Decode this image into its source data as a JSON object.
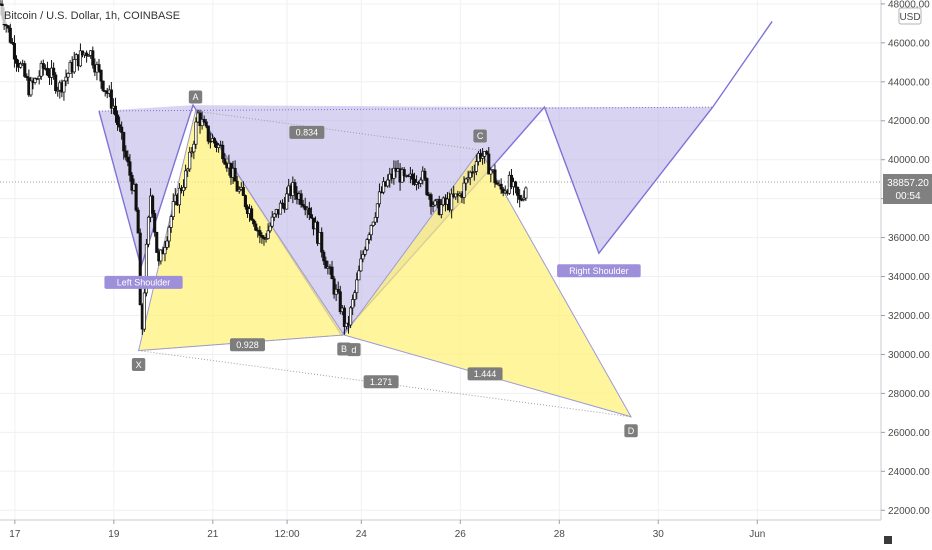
{
  "header": {
    "title": "Bitcoin / U.S. Dollar, 1h, COINBASE"
  },
  "price_axis": {
    "currency_label": "USD",
    "last_price_label": "38857.20",
    "countdown_label": "00:54"
  },
  "colors": {
    "up_candle": "#000000",
    "down_candle": "#000000",
    "harmonic_fill": "#fff176",
    "harmonic_stroke": "#9c9ad8",
    "hs_fill": "#b8aee6",
    "hs_stroke": "#7e73d6",
    "label_bg_purple": "#9d8fd9",
    "label_bg_gray": "#7d7d7d",
    "grid": "#eef0f3",
    "last_price_tag": "#808080"
  },
  "chart_data": {
    "type": "candlestick",
    "title": "Bitcoin / U.S. Dollar, 1h, COINBASE",
    "symbol": "BTCUSD",
    "exchange": "COINBASE",
    "interval": "1h",
    "ylim": [
      21500,
      48200
    ],
    "y_ticks": [
      22000,
      24000,
      26000,
      28000,
      30000,
      32000,
      34000,
      36000,
      38000,
      40000,
      42000,
      44000,
      46000,
      48000
    ],
    "y_tick_labels": [
      "22000.00",
      "24000.00",
      "26000.00",
      "28000.00",
      "30000.00",
      "32000.00",
      "34000.00",
      "36000.00",
      "38000.00",
      "40000.00",
      "42000.00",
      "44000.00",
      "46000.00",
      "48000.00"
    ],
    "x_range_days": [
      16.7,
      34.5
    ],
    "x_ticks": [
      {
        "day": 17,
        "label": "17"
      },
      {
        "day": 19,
        "label": "19"
      },
      {
        "day": 21,
        "label": "21"
      },
      {
        "day": 22.5,
        "label": "12:00"
      },
      {
        "day": 24,
        "label": "24"
      },
      {
        "day": 26,
        "label": "26"
      },
      {
        "day": 28,
        "label": "28"
      },
      {
        "day": 30,
        "label": "30"
      },
      {
        "day": 32,
        "label": "Jun"
      }
    ],
    "grid": true,
    "last_price": 38857.2,
    "price_path": [
      [
        16.7,
        48000
      ],
      [
        17.0,
        45500
      ],
      [
        17.3,
        43600
      ],
      [
        17.6,
        44800
      ],
      [
        17.9,
        43700
      ],
      [
        18.2,
        45000
      ],
      [
        18.5,
        45700
      ],
      [
        18.7,
        44400
      ],
      [
        19.0,
        42700
      ],
      [
        19.2,
        40500
      ],
      [
        19.4,
        38500
      ],
      [
        19.5,
        36000
      ],
      [
        19.55,
        30200
      ],
      [
        19.65,
        35000
      ],
      [
        19.75,
        38500
      ],
      [
        19.9,
        34500
      ],
      [
        20.2,
        37500
      ],
      [
        20.5,
        39500
      ],
      [
        20.7,
        42300
      ],
      [
        20.9,
        41200
      ],
      [
        21.2,
        40500
      ],
      [
        21.5,
        38500
      ],
      [
        21.8,
        37200
      ],
      [
        22.0,
        35800
      ],
      [
        22.3,
        37300
      ],
      [
        22.6,
        38500
      ],
      [
        22.9,
        37800
      ],
      [
        23.2,
        35500
      ],
      [
        23.4,
        33800
      ],
      [
        23.6,
        32300
      ],
      [
        23.7,
        31200
      ],
      [
        23.9,
        33500
      ],
      [
        24.1,
        36000
      ],
      [
        24.4,
        38300
      ],
      [
        24.7,
        39500
      ],
      [
        24.9,
        38800
      ],
      [
        25.2,
        39300
      ],
      [
        25.5,
        37500
      ],
      [
        25.8,
        37800
      ],
      [
        26.0,
        38200
      ],
      [
        26.2,
        39300
      ],
      [
        26.4,
        40400
      ],
      [
        26.6,
        39600
      ],
      [
        26.8,
        38400
      ],
      [
        27.0,
        38800
      ],
      [
        27.2,
        37800
      ],
      [
        27.35,
        38857
      ]
    ],
    "harmonic_pattern": {
      "points": [
        {
          "name": "X",
          "day": 19.5,
          "price": 30200
        },
        {
          "name": "A",
          "day": 20.65,
          "price": 42500
        },
        {
          "name": "B",
          "day": 23.65,
          "price": 31000
        },
        {
          "name": "C",
          "day": 26.4,
          "price": 40500
        },
        {
          "name": "D",
          "day": 29.45,
          "price": 26800
        }
      ],
      "ratios": [
        {
          "label": "0.834",
          "day": 22.9,
          "price": 41400
        },
        {
          "label": "0.928",
          "day": 21.7,
          "price": 30500
        },
        {
          "label": "1.271",
          "day": 24.4,
          "price": 28600
        },
        {
          "label": "1.444",
          "day": 26.5,
          "price": 29000
        }
      ]
    },
    "head_and_shoulders": {
      "points": [
        [
          18.7,
          42500
        ],
        [
          19.55,
          34500
        ],
        [
          20.6,
          42800
        ],
        [
          23.6,
          31000
        ],
        [
          26.7,
          39800
        ],
        [
          27.7,
          42700
        ],
        [
          28.8,
          35200
        ],
        [
          31.1,
          42700
        ],
        [
          32.3,
          47100
        ]
      ],
      "neckline": [
        [
          18.7,
          42500
        ],
        [
          31.1,
          42700
        ]
      ],
      "labels": [
        {
          "label": "Left Shoulder",
          "day": 19.6,
          "price": 33700
        },
        {
          "label": "Right Shoulder",
          "day": 28.8,
          "price": 34300
        }
      ]
    },
    "extra_markers": [
      {
        "label": "d",
        "day": 23.85,
        "price": 30250
      }
    ]
  }
}
